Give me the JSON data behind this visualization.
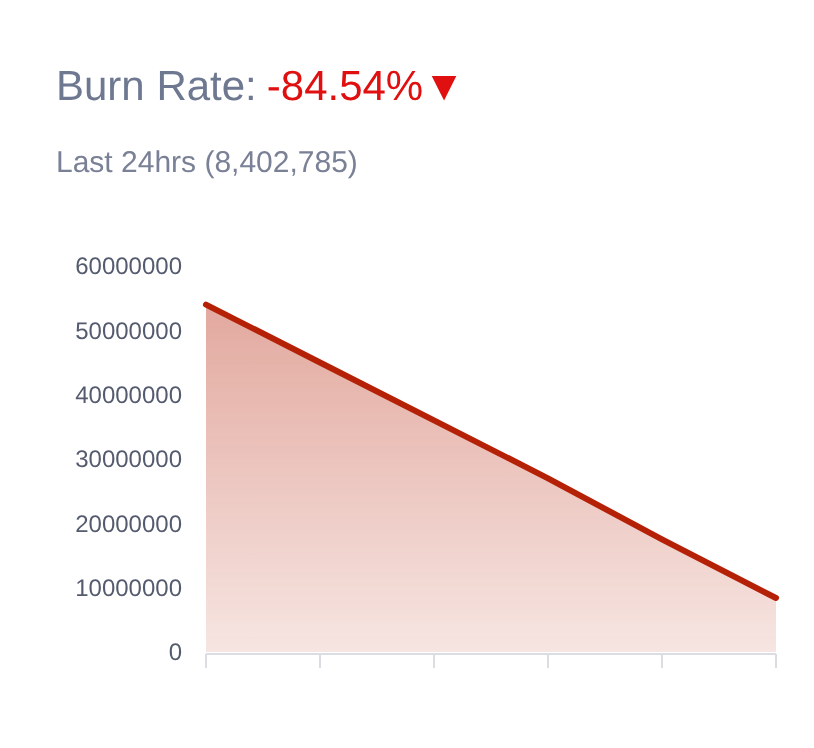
{
  "chart_data": {
    "type": "area",
    "title": "Burn Rate:",
    "subtitle": "Last 24hrs (8,402,785)",
    "annotations": [
      "-84.54%▼"
    ],
    "categories": [
      null,
      null,
      null,
      null,
      null,
      null
    ],
    "series": [
      {
        "color": "#b52107",
        "values": [
          54000000,
          45000000,
          36000000,
          27000000,
          17500000,
          8400000
        ]
      }
    ],
    "ylim": [
      0,
      60000000
    ],
    "yticks": [
      0,
      10000000,
      20000000,
      30000000,
      40000000,
      50000000,
      60000000
    ],
    "tick_labels": "y",
    "grid": false
  }
}
